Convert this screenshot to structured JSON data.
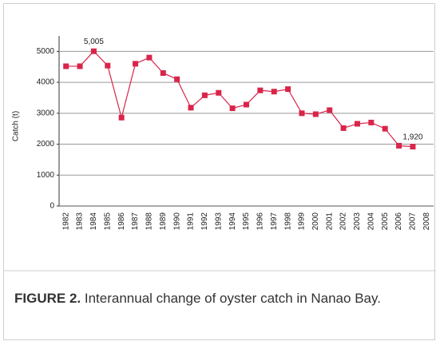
{
  "chart_data": {
    "type": "line",
    "y_label": "Catch (t)",
    "caption_label": "FIGURE 2.",
    "caption": "Interannual change of oyster catch in Nanao Bay.",
    "categories": [
      "1982",
      "1983",
      "1984",
      "1985",
      "1986",
      "1987",
      "1988",
      "1989",
      "1990",
      "1991",
      "1992",
      "1993",
      "1994",
      "1995",
      "1996",
      "1997",
      "1998",
      "1999",
      "2000",
      "2001",
      "2002",
      "2003",
      "2004",
      "2005",
      "2006",
      "2007",
      "2008"
    ],
    "series": [
      {
        "name": "Catch",
        "color": "#d9254a",
        "values": [
          4520,
          4520,
          5005,
          4540,
          2860,
          4600,
          4800,
          4300,
          4100,
          3180,
          3580,
          3660,
          3160,
          3280,
          3740,
          3700,
          3780,
          3000,
          2970,
          3100,
          2520,
          2660,
          2700,
          2500,
          1950,
          1920,
          null
        ],
        "value_labels": [
          null,
          null,
          "5,005",
          null,
          null,
          null,
          null,
          null,
          null,
          null,
          null,
          null,
          null,
          null,
          null,
          null,
          null,
          null,
          null,
          null,
          null,
          null,
          null,
          null,
          null,
          "1,920",
          null
        ]
      }
    ],
    "ylim": [
      0,
      5500
    ],
    "yticks": [
      0,
      1000,
      2000,
      3000,
      4000,
      5000
    ],
    "grid": true
  }
}
